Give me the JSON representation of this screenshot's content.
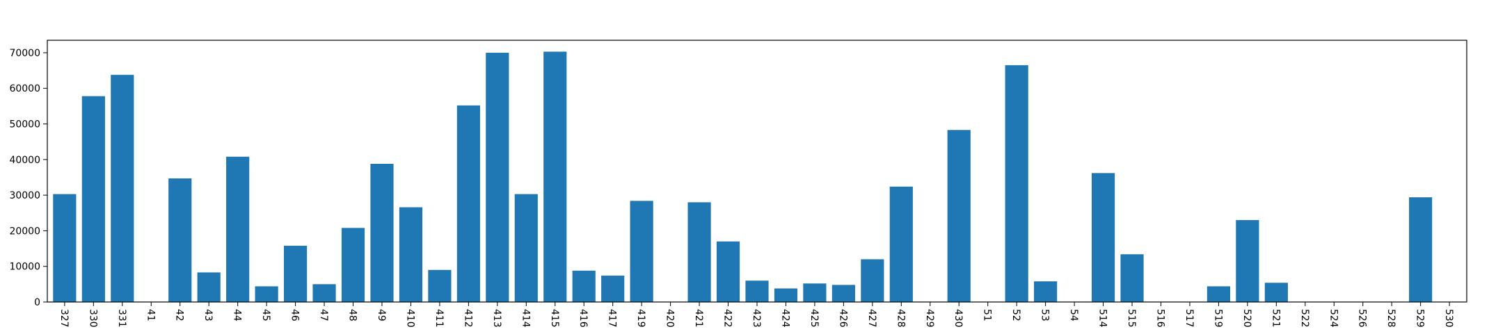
{
  "chart_data": {
    "type": "bar",
    "title": "",
    "xlabel": "",
    "ylabel": "",
    "bar_color": "#1f77b4",
    "grid": false,
    "ylim": [
      0,
      73500
    ],
    "yticks": [
      0,
      10000,
      20000,
      30000,
      40000,
      50000,
      60000,
      70000
    ],
    "categories": [
      "327",
      "330",
      "331",
      "41",
      "42",
      "43",
      "44",
      "45",
      "46",
      "47",
      "48",
      "49",
      "410",
      "411",
      "412",
      "413",
      "414",
      "415",
      "416",
      "417",
      "419",
      "420",
      "421",
      "422",
      "423",
      "424",
      "425",
      "426",
      "427",
      "428",
      "429",
      "430",
      "51",
      "52",
      "53",
      "54",
      "514",
      "515",
      "516",
      "517",
      "519",
      "520",
      "521",
      "522",
      "524",
      "526",
      "528",
      "529",
      "530"
    ],
    "values": [
      30300,
      57800,
      63800,
      0,
      34700,
      8300,
      40800,
      4400,
      15800,
      5000,
      20800,
      38800,
      26600,
      9000,
      55200,
      70000,
      30300,
      70300,
      8800,
      7400,
      28400,
      0,
      28000,
      17000,
      6000,
      3800,
      5200,
      4800,
      12000,
      32400,
      0,
      48300,
      0,
      66500,
      5800,
      0,
      36200,
      13400,
      0,
      0,
      4400,
      23000,
      5400,
      0,
      0,
      0,
      0,
      29400,
      0
    ]
  }
}
